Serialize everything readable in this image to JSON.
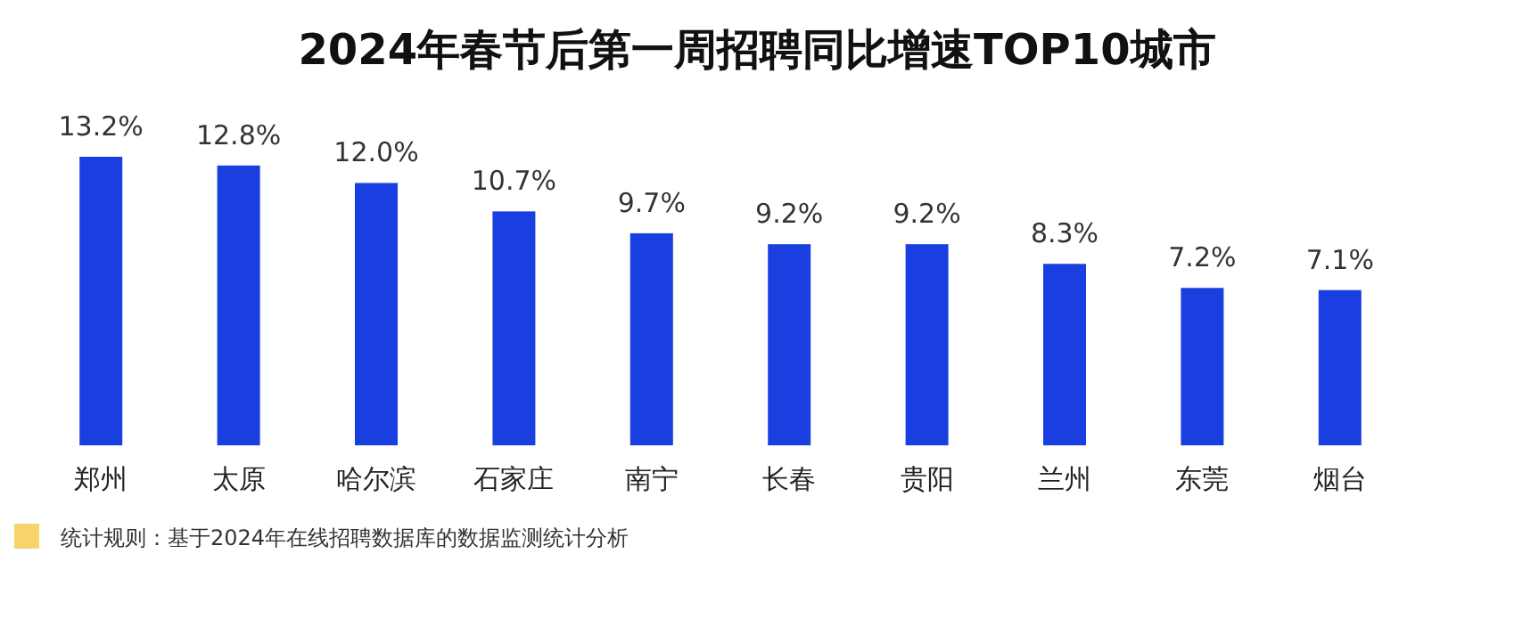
{
  "chart_data": {
    "type": "bar",
    "title": "2024年春节后第一周招聘同比增速TOP10城市",
    "categories": [
      "郑州",
      "太原",
      "哈尔滨",
      "石家庄",
      "南宁",
      "长春",
      "贵阳",
      "兰州",
      "东莞",
      "烟台"
    ],
    "values": [
      13.2,
      12.8,
      12.0,
      10.7,
      9.7,
      9.2,
      9.2,
      8.3,
      7.2,
      7.1
    ],
    "value_labels": [
      "13.2%",
      "12.8%",
      "12.0%",
      "10.7%",
      "9.7%",
      "9.2%",
      "9.2%",
      "8.3%",
      "7.2%",
      "7.1%"
    ],
    "color": "#1a3fe0",
    "annotations": [
      "统计规则：基于2024年在线招聘数据库的数据监测统计分析"
    ]
  }
}
